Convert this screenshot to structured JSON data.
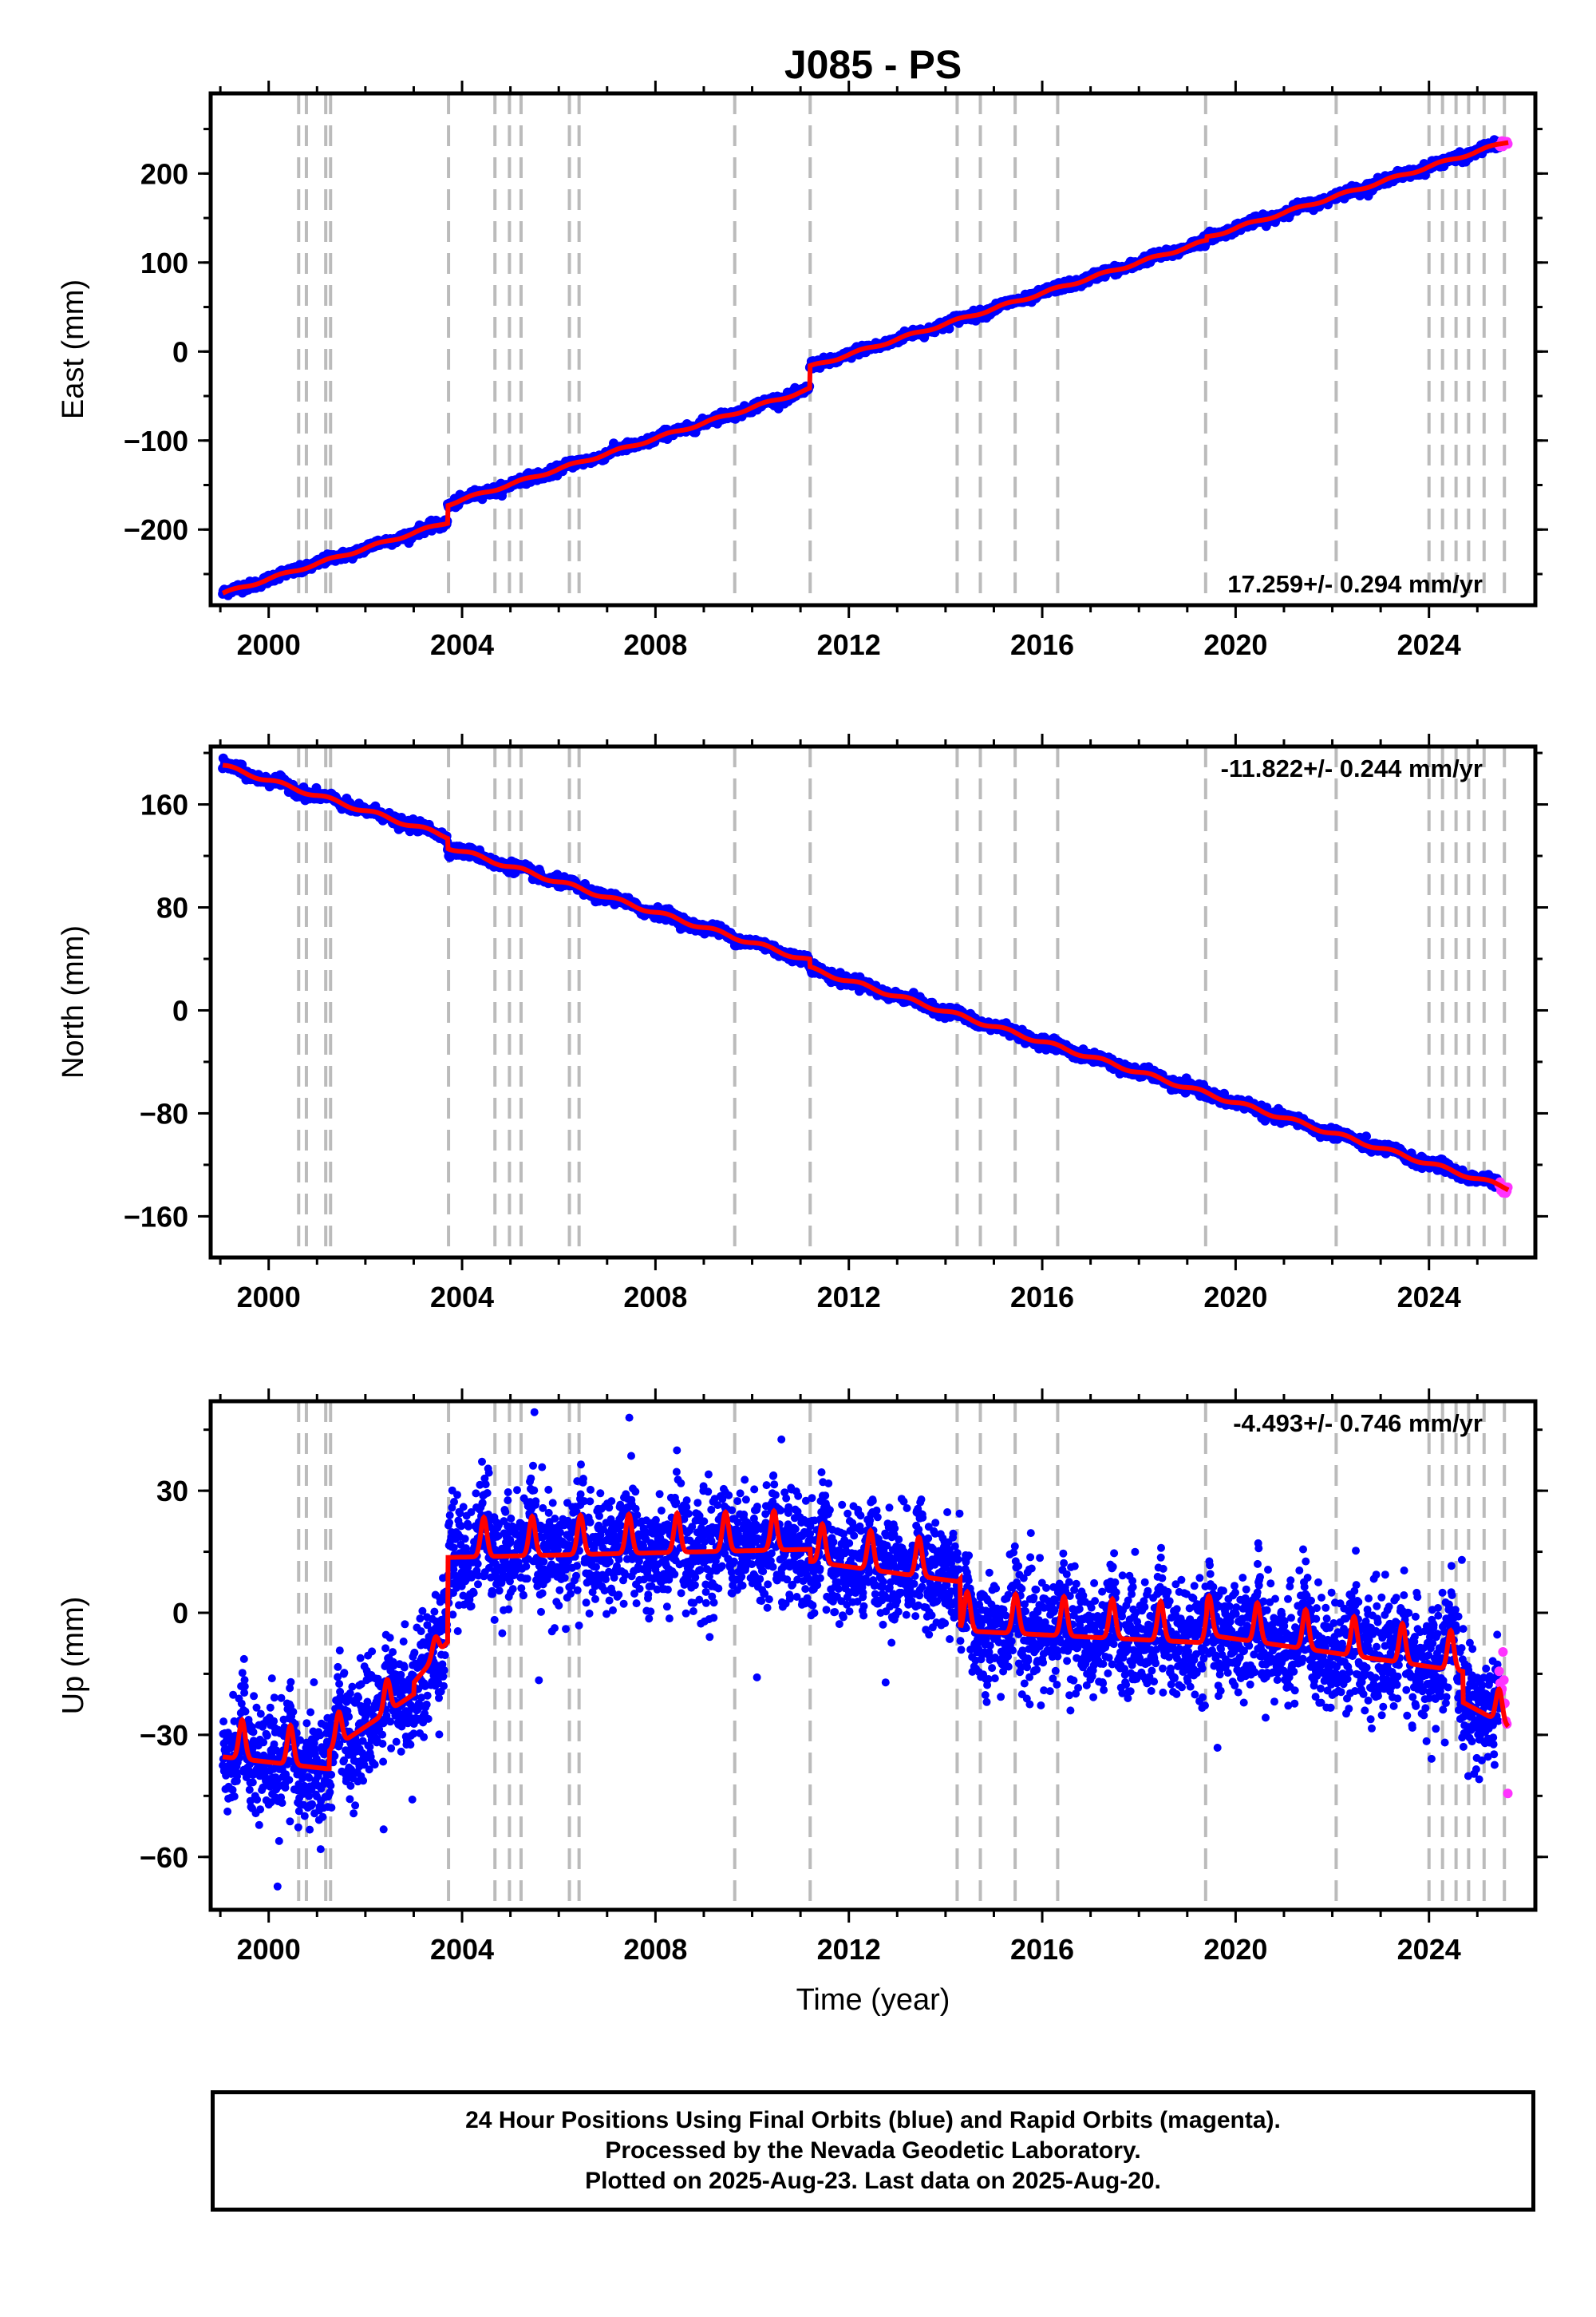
{
  "colors": {
    "final": "#0000ff",
    "rapid": "#ff33ff",
    "model": "#ff0000",
    "steps": "#bbbbbb"
  },
  "chart_data": [
    {
      "type": "scatter",
      "title": "J085 - PS",
      "ylabel": "East (mm)",
      "xlabel": "",
      "xlim": [
        1998.8,
        2026.2
      ],
      "ylim": [
        -285,
        290
      ],
      "x_ticks": [
        2000,
        2004,
        2008,
        2012,
        2016,
        2020,
        2024
      ],
      "y_ticks": [
        -200,
        -100,
        0,
        100,
        200
      ],
      "y_tick_labels": [
        "−200",
        "−100",
        "0",
        "100",
        "200"
      ],
      "rate_label": "17.259+/- 0.294 mm/yr",
      "rate_position": "bottom-right",
      "start": -272,
      "rate": 17.259,
      "offsets": [
        [
          2003.7,
          20
        ],
        [
          2011.19,
          25
        ],
        [
          2019.4,
          4
        ]
      ],
      "seasonal_amp": 1.5,
      "noise": 2.5,
      "series": [
        {
          "name": "Final Orbits",
          "color": "blue",
          "x_range": [
            1999.05,
            2025.45
          ]
        },
        {
          "name": "Rapid Orbits",
          "color": "magenta",
          "x_range": [
            2025.45,
            2025.64
          ]
        }
      ]
    },
    {
      "type": "scatter",
      "title": "",
      "ylabel": "North (mm)",
      "xlabel": "",
      "xlim": [
        1998.8,
        2026.2
      ],
      "ylim": [
        -192,
        205
      ],
      "x_ticks": [
        2000,
        2004,
        2008,
        2012,
        2016,
        2020,
        2024
      ],
      "y_ticks": [
        -160,
        -80,
        0,
        80,
        160
      ],
      "y_tick_labels": [
        "−160",
        "−80",
        "0",
        "80",
        "160"
      ],
      "rate_label": "-11.822+/- 0.244 mm/yr",
      "rate_position": "top-right",
      "start": 190,
      "rate": -11.822,
      "offsets": [
        [
          2003.7,
          -8
        ],
        [
          2011.19,
          -6
        ]
      ],
      "seasonal_amp": 1.5,
      "noise": 2.0,
      "series": [
        {
          "name": "Final Orbits",
          "color": "blue",
          "x_range": [
            1999.05,
            2025.45
          ]
        },
        {
          "name": "Rapid Orbits",
          "color": "magenta",
          "x_range": [
            2025.45,
            2025.64
          ]
        }
      ]
    },
    {
      "type": "scatter",
      "title": "",
      "ylabel": "Up (mm)",
      "xlabel": "Time (year)",
      "xlim": [
        1998.8,
        2026.2
      ],
      "ylim": [
        -73,
        52
      ],
      "x_ticks": [
        2000,
        2004,
        2008,
        2012,
        2016,
        2020,
        2024
      ],
      "y_ticks": [
        -60,
        -30,
        0,
        30
      ],
      "y_tick_labels": [
        "−60",
        "−30",
        "0",
        "30"
      ],
      "rate_label": "-4.493+/- 0.746 mm/yr",
      "rate_position": "top-right",
      "series": [
        {
          "name": "Final Orbits",
          "color": "blue",
          "x_range": [
            1999.05,
            2025.45
          ]
        },
        {
          "name": "Rapid Orbits",
          "color": "magenta",
          "x_range": [
            2025.45,
            2025.64
          ]
        }
      ],
      "model_segments": [
        {
          "x": [
            1999.05,
            2001.25
          ],
          "base": [
            -33,
            -36
          ],
          "amp": 6
        },
        {
          "x": [
            2001.25,
            2003.0
          ],
          "base": [
            -32,
            -18
          ],
          "amp": 5
        },
        {
          "x": [
            2003.0,
            2003.7
          ],
          "base": [
            -16,
            -6
          ],
          "amp": 3
        },
        {
          "x": [
            2003.7,
            2011.2
          ],
          "base": [
            16,
            18
          ],
          "amp": 6
        },
        {
          "x": [
            2011.2,
            2014.3
          ],
          "base": [
            15,
            10
          ],
          "amp": 6
        },
        {
          "x": [
            2014.3,
            2019.4
          ],
          "base": [
            -2,
            -5
          ],
          "amp": 6
        },
        {
          "x": [
            2019.4,
            2024.7
          ],
          "base": [
            -3,
            -12
          ],
          "amp": 6
        },
        {
          "x": [
            2024.7,
            2025.64
          ],
          "base": [
            -20,
            -26
          ],
          "amp": 5
        }
      ],
      "noise": 6.5
    }
  ],
  "step_epochs": [
    2000.62,
    2000.78,
    2001.18,
    2001.28,
    2003.72,
    2004.68,
    2004.98,
    2005.22,
    2006.22,
    2006.42,
    2009.64,
    2011.2,
    2014.24,
    2014.72,
    2015.44,
    2016.32,
    2019.38,
    2022.08,
    2024.0,
    2024.28,
    2024.56,
    2024.82,
    2025.14,
    2025.56
  ],
  "footer": {
    "line1": "24 Hour Positions Using Final Orbits (blue) and Rapid Orbits (magenta).",
    "line2": "Processed by the Nevada Geodetic Laboratory.",
    "line3": "Plotted on 2025-Aug-23. Last data on 2025-Aug-20."
  }
}
